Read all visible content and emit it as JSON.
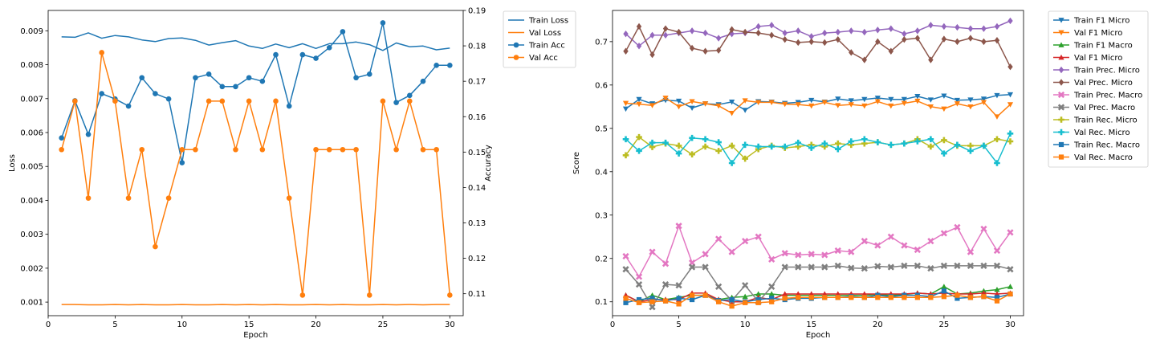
{
  "chart_data": [
    {
      "type": "line",
      "xlabel": "Epoch",
      "ylabel": "Loss",
      "y2label": "Accuracy",
      "xlim": [
        0,
        31
      ],
      "ylim": [
        0.0006,
        0.0096
      ],
      "y2lim": [
        0.1038,
        0.19
      ],
      "xticks": [
        "0",
        "5",
        "10",
        "15",
        "20",
        "25",
        "30"
      ],
      "yticks": [
        "0.001",
        "0.002",
        "0.003",
        "0.004",
        "0.005",
        "0.006",
        "0.007",
        "0.008",
        "0.009"
      ],
      "y2ticks": [
        "0.11",
        "0.12",
        "0.13",
        "0.14",
        "0.15",
        "0.16",
        "0.17",
        "0.18",
        "0.19"
      ],
      "legend": "outside-upper-right",
      "x": [
        1,
        2,
        3,
        4,
        5,
        6,
        7,
        8,
        9,
        10,
        11,
        12,
        13,
        14,
        15,
        16,
        17,
        18,
        19,
        20,
        21,
        22,
        23,
        24,
        25,
        26,
        27,
        28,
        29,
        30
      ],
      "series": [
        {
          "name": "Train Loss",
          "axis": "left",
          "color": "#1f77b4",
          "marker": "none",
          "values": [
            0.00882,
            0.00881,
            0.00894,
            0.00878,
            0.00886,
            0.00882,
            0.00873,
            0.00868,
            0.00877,
            0.00879,
            0.00872,
            0.00858,
            0.00865,
            0.00871,
            0.00855,
            0.00848,
            0.00861,
            0.0085,
            0.00862,
            0.00848,
            0.00862,
            0.00862,
            0.00867,
            0.00859,
            0.00842,
            0.00864,
            0.00853,
            0.00855,
            0.00844,
            0.00849
          ]
        },
        {
          "name": "Val Loss",
          "axis": "left",
          "color": "#ff7f0e",
          "marker": "none",
          "values": [
            0.00093,
            0.00093,
            0.00092,
            0.00092,
            0.00093,
            0.00092,
            0.00093,
            0.00092,
            0.00092,
            0.00093,
            0.00092,
            0.00092,
            0.00093,
            0.00092,
            0.00093,
            0.00092,
            0.00093,
            0.00092,
            0.00092,
            0.00093,
            0.00092,
            0.00093,
            0.00092,
            0.00092,
            0.00093,
            0.00092,
            0.00093,
            0.00092,
            0.00093,
            0.00093
          ]
        },
        {
          "name": "Train Acc",
          "axis": "right",
          "color": "#1f77b4",
          "marker": "circle",
          "values": [
            0.154,
            0.1645,
            0.155,
            0.1665,
            0.165,
            0.163,
            0.171,
            0.1665,
            0.165,
            0.147,
            0.171,
            0.172,
            0.1685,
            0.1685,
            0.171,
            0.17,
            0.1775,
            0.163,
            0.1775,
            0.1765,
            0.1795,
            0.184,
            0.171,
            0.172,
            0.1865,
            0.164,
            0.166,
            0.17,
            0.1745,
            0.1745
          ]
        },
        {
          "name": "Val Acc",
          "axis": "right",
          "color": "#ff7f0e",
          "marker": "circle",
          "values": [
            0.1507,
            0.1644,
            0.137,
            0.1781,
            0.1644,
            0.137,
            0.1507,
            0.1233,
            0.137,
            0.1507,
            0.1507,
            0.1644,
            0.1644,
            0.1507,
            0.1644,
            0.1507,
            0.1644,
            0.137,
            0.1096,
            0.1507,
            0.1507,
            0.1507,
            0.1507,
            0.1096,
            0.1644,
            0.1507,
            0.1644,
            0.1507,
            0.1507,
            0.1096
          ]
        }
      ]
    },
    {
      "type": "line",
      "xlabel": "Epoch",
      "ylabel": "Score",
      "xlim": [
        0,
        31
      ],
      "ylim": [
        0.068,
        0.772
      ],
      "xticks": [
        "0",
        "5",
        "10",
        "15",
        "20",
        "25",
        "30"
      ],
      "yticks": [
        "0.1",
        "0.2",
        "0.3",
        "0.4",
        "0.5",
        "0.6",
        "0.7"
      ],
      "legend": "outside-upper-right",
      "x": [
        1,
        2,
        3,
        4,
        5,
        6,
        7,
        8,
        9,
        10,
        11,
        12,
        13,
        14,
        15,
        16,
        17,
        18,
        19,
        20,
        21,
        22,
        23,
        24,
        25,
        26,
        27,
        28,
        29,
        30
      ],
      "series": [
        {
          "name": "Train F1 Micro",
          "color": "#1f77b4",
          "marker": "tri-down",
          "values": [
            0.545,
            0.567,
            0.557,
            0.565,
            0.563,
            0.547,
            0.557,
            0.555,
            0.561,
            0.542,
            0.562,
            0.561,
            0.558,
            0.56,
            0.565,
            0.561,
            0.568,
            0.564,
            0.567,
            0.57,
            0.567,
            0.567,
            0.574,
            0.566,
            0.575,
            0.565,
            0.566,
            0.568,
            0.576,
            0.578
          ]
        },
        {
          "name": "Val F1 Micro",
          "color": "#ff7f0e",
          "marker": "tri-down",
          "values": [
            0.558,
            0.556,
            0.553,
            0.57,
            0.55,
            0.562,
            0.557,
            0.552,
            0.535,
            0.564,
            0.56,
            0.56,
            0.556,
            0.555,
            0.552,
            0.56,
            0.553,
            0.555,
            0.552,
            0.562,
            0.552,
            0.558,
            0.563,
            0.55,
            0.545,
            0.557,
            0.55,
            0.56,
            0.527,
            0.555
          ]
        },
        {
          "name": "Train F1 Macro",
          "color": "#2ca02c",
          "marker": "tri-up",
          "values": [
            0.115,
            0.1,
            0.115,
            0.105,
            0.11,
            0.115,
            0.115,
            0.105,
            0.11,
            0.112,
            0.118,
            0.118,
            0.115,
            0.115,
            0.115,
            0.115,
            0.115,
            0.115,
            0.115,
            0.117,
            0.115,
            0.117,
            0.12,
            0.118,
            0.135,
            0.118,
            0.12,
            0.125,
            0.128,
            0.135
          ]
        },
        {
          "name": "Val F1 Micro",
          "color": "#d62728",
          "marker": "tri-up",
          "values": [
            0.115,
            0.1,
            0.105,
            0.105,
            0.105,
            0.12,
            0.12,
            0.105,
            0.1,
            0.1,
            0.11,
            0.105,
            0.118,
            0.118,
            0.118,
            0.118,
            0.118,
            0.118,
            0.118,
            0.118,
            0.118,
            0.118,
            0.12,
            0.118,
            0.12,
            0.118,
            0.118,
            0.12,
            0.118,
            0.12
          ]
        },
        {
          "name": "Train Prec. Micro",
          "color": "#9467bd",
          "marker": "diamond",
          "values": [
            0.718,
            0.69,
            0.715,
            0.715,
            0.72,
            0.725,
            0.72,
            0.708,
            0.718,
            0.72,
            0.735,
            0.738,
            0.72,
            0.725,
            0.712,
            0.72,
            0.722,
            0.725,
            0.722,
            0.727,
            0.73,
            0.718,
            0.725,
            0.738,
            0.735,
            0.733,
            0.73,
            0.73,
            0.735,
            0.748
          ]
        },
        {
          "name": "Val Prec. Micro",
          "color": "#8c564b",
          "marker": "diamond",
          "values": [
            0.678,
            0.735,
            0.67,
            0.73,
            0.722,
            0.685,
            0.678,
            0.68,
            0.728,
            0.722,
            0.72,
            0.715,
            0.705,
            0.698,
            0.7,
            0.698,
            0.705,
            0.675,
            0.658,
            0.7,
            0.678,
            0.705,
            0.708,
            0.658,
            0.706,
            0.7,
            0.708,
            0.7,
            0.703,
            0.642
          ]
        },
        {
          "name": "Train Prec. Macro",
          "color": "#e377c2",
          "marker": "x",
          "values": [
            0.205,
            0.158,
            0.215,
            0.188,
            0.275,
            0.19,
            0.21,
            0.245,
            0.215,
            0.24,
            0.25,
            0.198,
            0.212,
            0.208,
            0.21,
            0.208,
            0.218,
            0.215,
            0.24,
            0.23,
            0.25,
            0.23,
            0.22,
            0.24,
            0.258,
            0.272,
            0.215,
            0.268,
            0.218,
            0.26
          ]
        },
        {
          "name": "Val Prec. Macro",
          "color": "#7f7f7f",
          "marker": "x",
          "values": [
            0.175,
            0.14,
            0.088,
            0.14,
            0.138,
            0.18,
            0.18,
            0.135,
            0.103,
            0.138,
            0.1,
            0.135,
            0.18,
            0.18,
            0.18,
            0.18,
            0.183,
            0.178,
            0.177,
            0.182,
            0.18,
            0.183,
            0.183,
            0.177,
            0.183,
            0.183,
            0.183,
            0.183,
            0.183,
            0.175
          ]
        },
        {
          "name": "Train Rec. Micro",
          "color": "#bcbd22",
          "marker": "plus",
          "values": [
            0.438,
            0.48,
            0.457,
            0.465,
            0.46,
            0.44,
            0.458,
            0.448,
            0.46,
            0.43,
            0.452,
            0.46,
            0.455,
            0.458,
            0.462,
            0.458,
            0.465,
            0.462,
            0.465,
            0.468,
            0.462,
            0.465,
            0.475,
            0.458,
            0.473,
            0.46,
            0.46,
            0.46,
            0.475,
            0.47
          ]
        },
        {
          "name": "Val Rec. Micro",
          "color": "#17becf",
          "marker": "plus",
          "values": [
            0.475,
            0.448,
            0.467,
            0.467,
            0.442,
            0.478,
            0.475,
            0.468,
            0.42,
            0.462,
            0.458,
            0.458,
            0.458,
            0.467,
            0.455,
            0.465,
            0.452,
            0.47,
            0.475,
            0.468,
            0.462,
            0.465,
            0.47,
            0.475,
            0.442,
            0.462,
            0.448,
            0.46,
            0.42,
            0.488
          ]
        },
        {
          "name": "Train Rec. Macro",
          "color": "#1f77b4",
          "marker": "square",
          "values": [
            0.098,
            0.105,
            0.108,
            0.102,
            0.108,
            0.105,
            0.115,
            0.103,
            0.105,
            0.1,
            0.105,
            0.108,
            0.105,
            0.108,
            0.108,
            0.11,
            0.11,
            0.112,
            0.11,
            0.115,
            0.112,
            0.115,
            0.115,
            0.112,
            0.125,
            0.108,
            0.11,
            0.112,
            0.11,
            0.118
          ]
        },
        {
          "name": "Val Rec. Macro",
          "color": "#ff7f0e",
          "marker": "square",
          "values": [
            0.108,
            0.098,
            0.1,
            0.102,
            0.095,
            0.115,
            0.115,
            0.1,
            0.09,
            0.098,
            0.098,
            0.1,
            0.108,
            0.11,
            0.11,
            0.11,
            0.11,
            0.11,
            0.11,
            0.11,
            0.11,
            0.11,
            0.11,
            0.11,
            0.112,
            0.115,
            0.11,
            0.112,
            0.102,
            0.118
          ]
        }
      ]
    }
  ]
}
